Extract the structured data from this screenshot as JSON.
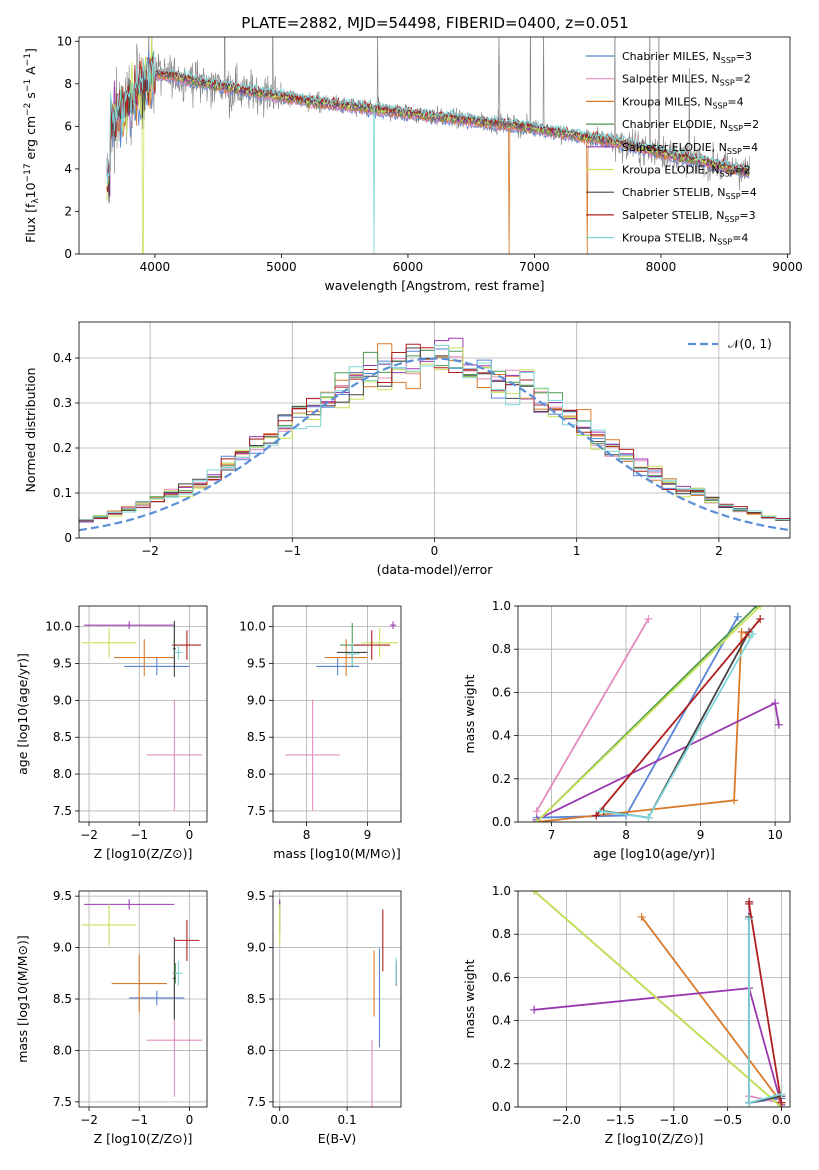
{
  "figure": {
    "title": "PLATE=2882, MJD=54498, FIBERID=0400, z=0.051"
  },
  "colors": {
    "Chabrier MILES": "#5a84d8",
    "Salpeter MILES": "#e58cbe",
    "Kroupa MILES": "#d97a2b",
    "Chabrier ELODIE": "#4f9a4f",
    "Salpeter ELODIE": "#9a3ab0",
    "Kroupa ELODIE": "#c8e35a",
    "Chabrier STELIB": "#444444",
    "Salpeter STELIB": "#b01f1f",
    "Kroupa STELIB": "#7fd6d9",
    "data": "#808080",
    "normal": "#5b8fd6"
  },
  "chart_data": [
    {
      "id": "spectrum",
      "type": "line",
      "xlabel": "wavelength [Angstrom, rest frame]",
      "ylabel": "Flux [f_λ 10^-17 erg cm^-2 s^-1 A^-1]",
      "xlim": [
        3400,
        9020
      ],
      "ylim": [
        0,
        10.2
      ],
      "xticks": [
        4000,
        5000,
        6000,
        7000,
        8000,
        9000
      ],
      "yticks": [
        0,
        2,
        4,
        6,
        8,
        10
      ],
      "legend_position": "top-right",
      "legend": [
        {
          "model": "Chabrier MILES",
          "nssp": 3
        },
        {
          "model": "Salpeter MILES",
          "nssp": 2
        },
        {
          "model": "Kroupa MILES",
          "nssp": 4
        },
        {
          "model": "Chabrier ELODIE",
          "nssp": 2
        },
        {
          "model": "Salpeter ELODIE",
          "nssp": 4
        },
        {
          "model": "Kroupa ELODIE",
          "nssp": 2
        },
        {
          "model": "Chabrier STELIB",
          "nssp": 4
        },
        {
          "model": "Salpeter STELIB",
          "nssp": 3
        },
        {
          "model": "Kroupa STELIB",
          "nssp": 4
        }
      ],
      "continuum": {
        "x": [
          3650,
          3800,
          3900,
          4000,
          4200,
          4500,
          4800,
          5000,
          5300,
          5600,
          6000,
          6300,
          6600,
          6900,
          7200,
          7500,
          7700,
          7900,
          8100,
          8300,
          8500,
          8800
        ],
        "y": [
          6.3,
          7.0,
          8.0,
          8.5,
          8.3,
          7.9,
          7.6,
          7.4,
          7.1,
          6.9,
          6.6,
          6.4,
          6.2,
          6.0,
          5.7,
          5.4,
          5.2,
          4.9,
          4.6,
          4.4,
          4.1,
          3.7
        ]
      },
      "data_range": [
        3620,
        8700
      ],
      "notable_features": [
        {
          "x": 5730,
          "y": 0.0,
          "series": "Kroupa STELIB"
        },
        {
          "x": 6800,
          "y": 0.0,
          "series": "Kroupa MILES"
        },
        {
          "x": 7420,
          "y": 0.0,
          "series": "Kroupa MILES"
        },
        {
          "x": 3905,
          "y": 0.0,
          "series": "Kroupa ELODIE"
        },
        {
          "x": 6720,
          "y": 10.2,
          "series": "data"
        }
      ]
    },
    {
      "id": "residuals",
      "type": "histogram",
      "xlabel": "(data-model)/error",
      "ylabel": "Normed distribution",
      "xlim": [
        -2.5,
        2.5
      ],
      "ylim": [
        0,
        0.48
      ],
      "xticks": [
        -2,
        -1,
        0,
        1,
        2
      ],
      "yticks": [
        0.0,
        0.1,
        0.2,
        0.3,
        0.4
      ],
      "bin_width": 0.1,
      "legend_position": "top-right",
      "reference": {
        "label": "𝒩(0, 1)",
        "mean": 0,
        "sigma": 1
      }
    },
    {
      "id": "age-vs-Z",
      "type": "errorbar",
      "xlabel": "Z [log10(Z/Z⊙)]",
      "ylabel": "age  [log10(age/yr)]",
      "xlim": [
        -2.2,
        0.35
      ],
      "ylim": [
        7.35,
        10.28
      ],
      "xticks": [
        -2,
        -1,
        0
      ],
      "yticks": [
        7.5,
        8.0,
        8.5,
        9.0,
        9.5,
        10.0
      ],
      "points": [
        {
          "model": "Chabrier MILES",
          "x": -0.65,
          "xerr": 0.65,
          "y": 9.46,
          "yerr": 0.12
        },
        {
          "model": "Salpeter MILES",
          "x": -0.3,
          "xerr": 0.55,
          "y": 8.26,
          "yerr": 0.75
        },
        {
          "model": "Kroupa MILES",
          "x": -0.9,
          "xerr": 0.6,
          "y": 9.58,
          "yerr": 0.25
        },
        {
          "model": "Chabrier ELODIE",
          "x": -0.3,
          "xerr": 0.05,
          "y": 9.75,
          "yerr": 0.3
        },
        {
          "model": "Salpeter ELODIE",
          "x": -1.2,
          "xerr": 0.9,
          "y": 10.02,
          "yerr": 0.05
        },
        {
          "model": "Kroupa ELODIE",
          "x": -1.6,
          "xerr": 0.55,
          "y": 9.78,
          "yerr": 0.2
        },
        {
          "model": "Chabrier STELIB",
          "x": -0.3,
          "xerr": 0.03,
          "y": 9.7,
          "yerr": 0.38
        },
        {
          "model": "Salpeter STELIB",
          "x": -0.05,
          "xerr": 0.28,
          "y": 9.75,
          "yerr": 0.2
        },
        {
          "model": "Kroupa STELIB",
          "x": -0.22,
          "xerr": 0.08,
          "y": 9.65,
          "yerr": 0.1
        }
      ]
    },
    {
      "id": "age-vs-mass",
      "type": "errorbar",
      "xlabel": "mass [log10(M/M⊙)]",
      "ylabel": "",
      "xlim": [
        7.45,
        9.55
      ],
      "ylim": [
        7.35,
        10.28
      ],
      "xticks": [
        8,
        9
      ],
      "yticks": [
        7.5,
        8.0,
        8.5,
        9.0,
        9.5,
        10.0
      ],
      "points": [
        {
          "model": "Chabrier MILES",
          "x": 8.51,
          "xerr": 0.35,
          "y": 9.46,
          "yerr": 0.12
        },
        {
          "model": "Salpeter MILES",
          "x": 8.1,
          "xerr": 0.45,
          "y": 8.26,
          "yerr": 0.75
        },
        {
          "model": "Kroupa MILES",
          "x": 8.65,
          "xerr": 0.35,
          "y": 9.58,
          "yerr": 0.25
        },
        {
          "model": "Chabrier ELODIE",
          "x": 8.75,
          "xerr": 0.2,
          "y": 9.75,
          "yerr": 0.3
        },
        {
          "model": "Salpeter ELODIE",
          "x": 9.42,
          "xerr": 0.05,
          "y": 10.02,
          "yerr": 0.05
        },
        {
          "model": "Kroupa ELODIE",
          "x": 9.2,
          "xerr": 0.3,
          "y": 9.78,
          "yerr": 0.2
        },
        {
          "model": "Chabrier STELIB",
          "x": 8.75,
          "xerr": 0.25,
          "y": 9.65,
          "yerr": 0.1
        },
        {
          "model": "Salpeter STELIB",
          "x": 9.07,
          "xerr": 0.3,
          "y": 9.75,
          "yerr": 0.2
        },
        {
          "model": "Kroupa STELIB",
          "x": 8.75,
          "xerr": 0.12,
          "y": 9.63,
          "yerr": 0.15
        }
      ]
    },
    {
      "id": "mass-weight-vs-age",
      "type": "line",
      "xlabel": "age  [log10(age/yr)]",
      "ylabel": "mass weight",
      "xlim": [
        6.55,
        10.2
      ],
      "ylim": [
        0,
        1.0
      ],
      "xticks": [
        7,
        8,
        9,
        10
      ],
      "yticks": [
        0.0,
        0.2,
        0.4,
        0.6,
        0.8,
        1.0
      ],
      "series": [
        {
          "model": "Chabrier MILES",
          "x": [
            6.8,
            8.0,
            9.5
          ],
          "y": [
            0.02,
            0.03,
            0.95
          ]
        },
        {
          "model": "Salpeter MILES",
          "x": [
            6.8,
            8.3
          ],
          "y": [
            0.05,
            0.94
          ]
        },
        {
          "model": "Kroupa MILES",
          "x": [
            6.8,
            9.45,
            9.55,
            9.65
          ],
          "y": [
            0.0,
            0.1,
            0.88,
            0.87
          ]
        },
        {
          "model": "Chabrier ELODIE",
          "x": [
            6.8,
            9.75
          ],
          "y": [
            0.0,
            1.0
          ]
        },
        {
          "model": "Salpeter ELODIE",
          "x": [
            6.8,
            10.0,
            10.05
          ],
          "y": [
            0.01,
            0.55,
            0.45
          ]
        },
        {
          "model": "Kroupa ELODIE",
          "x": [
            6.8,
            9.8
          ],
          "y": [
            0.0,
            1.0
          ]
        },
        {
          "model": "Chabrier STELIB",
          "x": [
            7.7,
            8.3,
            9.65
          ],
          "y": [
            0.05,
            0.02,
            0.88
          ]
        },
        {
          "model": "Salpeter STELIB",
          "x": [
            7.6,
            9.8
          ],
          "y": [
            0.03,
            0.94
          ]
        },
        {
          "model": "Kroupa STELIB",
          "x": [
            7.65,
            8.3,
            9.7
          ],
          "y": [
            0.05,
            0.02,
            0.87
          ]
        }
      ]
    },
    {
      "id": "mass-vs-Z",
      "type": "errorbar",
      "xlabel": "Z [log10(Z/Z⊙)]",
      "ylabel": "mass [log10(M/M⊙)]",
      "xlim": [
        -2.2,
        0.35
      ],
      "ylim": [
        7.45,
        9.55
      ],
      "xticks": [
        -2,
        -1,
        0
      ],
      "yticks": [
        7.5,
        8.0,
        8.5,
        9.0,
        9.5
      ],
      "points": [
        {
          "model": "Chabrier MILES",
          "x": -0.65,
          "xerr": 0.55,
          "y": 8.51,
          "yerr": 0.07
        },
        {
          "model": "Salpeter MILES",
          "x": -0.3,
          "xerr": 0.55,
          "y": 8.1,
          "yerr": 0.55
        },
        {
          "model": "Kroupa MILES",
          "x": -1.0,
          "xerr": 0.55,
          "y": 8.65,
          "yerr": 0.28
        },
        {
          "model": "Chabrier ELODIE",
          "x": -0.28,
          "xerr": 0.05,
          "y": 8.75,
          "yerr": 0.1
        },
        {
          "model": "Salpeter ELODIE",
          "x": -1.2,
          "xerr": 0.9,
          "y": 9.42,
          "yerr": 0.05
        },
        {
          "model": "Kroupa ELODIE",
          "x": -1.6,
          "xerr": 0.55,
          "y": 9.22,
          "yerr": 0.2
        },
        {
          "model": "Chabrier STELIB",
          "x": -0.3,
          "xerr": 0.03,
          "y": 8.7,
          "yerr": 0.4
        },
        {
          "model": "Salpeter STELIB",
          "x": -0.05,
          "xerr": 0.25,
          "y": 9.07,
          "yerr": 0.2
        },
        {
          "model": "Kroupa STELIB",
          "x": -0.22,
          "xerr": 0.08,
          "y": 8.75,
          "yerr": 0.12
        }
      ]
    },
    {
      "id": "mass-vs-ebv",
      "type": "errorbar",
      "xlabel": "E(B-V)",
      "ylabel": "",
      "xlim": [
        -0.01,
        0.18
      ],
      "ylim": [
        7.45,
        9.55
      ],
      "xticks": [
        0.0,
        0.1
      ],
      "yticks": [
        7.5,
        8.0,
        8.5,
        9.0,
        9.5
      ],
      "points": [
        {
          "model": "Chabrier MILES",
          "x": 0.148,
          "xerr": 0,
          "y": 8.51,
          "yerr": 0.48
        },
        {
          "model": "Salpeter MILES",
          "x": 0.137,
          "xerr": 0,
          "y": 7.75,
          "yerr": 0.35
        },
        {
          "model": "Kroupa MILES",
          "x": 0.14,
          "xerr": 0,
          "y": 8.65,
          "yerr": 0.32
        },
        {
          "model": "Chabrier ELODIE",
          "x": 0.0,
          "xerr": 0,
          "y": 9.3,
          "yerr": 0.15
        },
        {
          "model": "Salpeter ELODIE",
          "x": 0.0,
          "xerr": 0,
          "y": 9.42,
          "yerr": 0.05
        },
        {
          "model": "Kroupa ELODIE",
          "x": 0.0,
          "xerr": 0,
          "y": 9.22,
          "yerr": 0.2
        },
        {
          "model": "Chabrier STELIB",
          "x": 0.173,
          "xerr": 0,
          "y": 8.75,
          "yerr": 0.12
        },
        {
          "model": "Salpeter STELIB",
          "x": 0.153,
          "xerr": 0,
          "y": 9.07,
          "yerr": 0.3
        },
        {
          "model": "Kroupa STELIB",
          "x": 0.173,
          "xerr": 0,
          "y": 8.77,
          "yerr": 0.13
        }
      ]
    },
    {
      "id": "mass-weight-vs-Z",
      "type": "line",
      "xlabel": "Z [log10(Z/Z⊙)]",
      "ylabel": "mass weight",
      "xlim": [
        -2.45,
        0.08
      ],
      "ylim": [
        0,
        1.0
      ],
      "xticks": [
        -2.0,
        -1.5,
        -1.0,
        -0.5,
        0.0
      ],
      "yticks": [
        0.0,
        0.2,
        0.4,
        0.6,
        0.8,
        1.0
      ],
      "series": [
        {
          "model": "Chabrier MILES",
          "x": [
            -0.3,
            -0.3,
            0.0
          ],
          "y": [
            0.95,
            0.02,
            0.04
          ]
        },
        {
          "model": "Salpeter MILES",
          "x": [
            -0.3,
            -0.3,
            0.0
          ],
          "y": [
            0.94,
            0.05,
            0.02
          ]
        },
        {
          "model": "Kroupa MILES",
          "x": [
            -1.3,
            0.0
          ],
          "y": [
            0.88,
            0.02
          ]
        },
        {
          "model": "Chabrier ELODIE",
          "x": [
            -2.3,
            0.0
          ],
          "y": [
            1.0,
            0.0
          ]
        },
        {
          "model": "Salpeter ELODIE",
          "x": [
            -2.3,
            -0.3,
            0.0
          ],
          "y": [
            0.45,
            0.55,
            0.01
          ]
        },
        {
          "model": "Kroupa ELODIE",
          "x": [
            -2.3,
            0.0
          ],
          "y": [
            1.0,
            0.0
          ]
        },
        {
          "model": "Chabrier STELIB",
          "x": [
            -0.3,
            -0.3,
            0.0
          ],
          "y": [
            0.88,
            0.02,
            0.05
          ]
        },
        {
          "model": "Salpeter STELIB",
          "x": [
            -0.3,
            -0.3,
            0.0
          ],
          "y": [
            0.95,
            0.94,
            0.02
          ]
        },
        {
          "model": "Kroupa STELIB",
          "x": [
            -0.3,
            -0.3,
            0.0
          ],
          "y": [
            0.87,
            0.02,
            0.06
          ]
        }
      ]
    }
  ]
}
